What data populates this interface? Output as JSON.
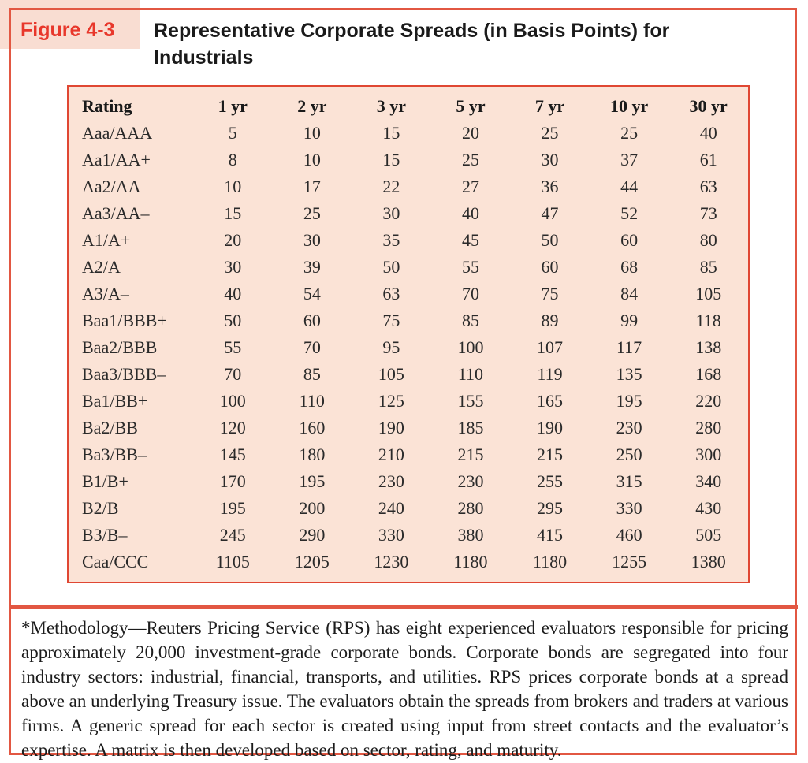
{
  "figure": {
    "label": "Figure 4-3",
    "title_line1": "Representative Corporate Spreads (in Basis Points) for",
    "title_line2": "Industrials"
  },
  "table": {
    "columns": [
      "Rating",
      "1 yr",
      "2 yr",
      "3 yr",
      "5 yr",
      "7 yr",
      "10 yr",
      "30 yr"
    ],
    "rows": [
      {
        "rating": "Aaa/AAA",
        "values": [
          5,
          10,
          15,
          20,
          25,
          25,
          40
        ]
      },
      {
        "rating": "Aa1/AA+",
        "values": [
          8,
          10,
          15,
          25,
          30,
          37,
          61
        ]
      },
      {
        "rating": "Aa2/AA",
        "values": [
          10,
          17,
          22,
          27,
          36,
          44,
          63
        ]
      },
      {
        "rating": "Aa3/AA–",
        "values": [
          15,
          25,
          30,
          40,
          47,
          52,
          73
        ]
      },
      {
        "rating": "A1/A+",
        "values": [
          20,
          30,
          35,
          45,
          50,
          60,
          80
        ]
      },
      {
        "rating": "A2/A",
        "values": [
          30,
          39,
          50,
          55,
          60,
          68,
          85
        ]
      },
      {
        "rating": "A3/A–",
        "values": [
          40,
          54,
          63,
          70,
          75,
          84,
          105
        ]
      },
      {
        "rating": "Baa1/BBB+",
        "values": [
          50,
          60,
          75,
          85,
          89,
          99,
          118
        ]
      },
      {
        "rating": "Baa2/BBB",
        "values": [
          55,
          70,
          95,
          100,
          107,
          117,
          138
        ]
      },
      {
        "rating": "Baa3/BBB–",
        "values": [
          70,
          85,
          105,
          110,
          119,
          135,
          168
        ]
      },
      {
        "rating": "Ba1/BB+",
        "values": [
          100,
          110,
          125,
          155,
          165,
          195,
          220
        ]
      },
      {
        "rating": "Ba2/BB",
        "values": [
          120,
          160,
          190,
          185,
          190,
          230,
          280
        ]
      },
      {
        "rating": "Ba3/BB–",
        "values": [
          145,
          180,
          210,
          215,
          215,
          250,
          300
        ]
      },
      {
        "rating": "B1/B+",
        "values": [
          170,
          195,
          230,
          230,
          255,
          315,
          340
        ]
      },
      {
        "rating": "B2/B",
        "values": [
          195,
          200,
          240,
          280,
          295,
          330,
          430
        ]
      },
      {
        "rating": "B3/B–",
        "values": [
          245,
          290,
          330,
          380,
          415,
          460,
          505
        ]
      },
      {
        "rating": "Caa/CCC",
        "values": [
          1105,
          1205,
          1230,
          1180,
          1180,
          1255,
          1380
        ]
      }
    ]
  },
  "footnote": "*Methodology—Reuters Pricing Service (RPS) has eight experienced evaluators responsible for pricing approximately 20,000 investment-grade corporate bonds. Corporate bonds are segregated into four industry sectors: industrial, financial, transports, and utilities. RPS prices corporate bonds at a spread above an underlying Treasury issue. The evaluators obtain the spreads from brokers and traders at various firms. A generic spread for each sector is created using input from street contacts and the evaluator’s expertise. A matrix is then developed based on sector, rating, and maturity.",
  "colors": {
    "accent_red_text": "#e8372b",
    "label_band_pink": "#f9ddd2",
    "outer_border": "#e25742",
    "table_border": "#e04733",
    "table_fill": "#fbe3d6",
    "body_text": "#1c1c1c"
  }
}
